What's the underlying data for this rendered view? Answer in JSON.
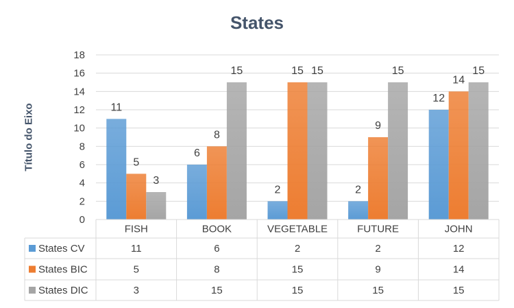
{
  "chart_data": {
    "type": "bar",
    "title": "States",
    "xlabel": "",
    "ylabel": "Título do Eixo",
    "ylim": [
      0,
      18
    ],
    "ytick_step": 2,
    "categories": [
      "FISH",
      "BOOK",
      "VEGETABLE",
      "FUTURE",
      "JOHN"
    ],
    "series": [
      {
        "name": "States CV",
        "color": "#5b9bd5",
        "values": [
          11,
          6,
          2,
          2,
          12
        ]
      },
      {
        "name": "States BIC",
        "color": "#ed7d31",
        "values": [
          5,
          8,
          15,
          9,
          14
        ]
      },
      {
        "name": "States DIC",
        "color": "#a5a5a5",
        "values": [
          3,
          15,
          15,
          15,
          15
        ]
      }
    ],
    "grid": true,
    "legend": "data table below chart",
    "data_labels": true
  }
}
